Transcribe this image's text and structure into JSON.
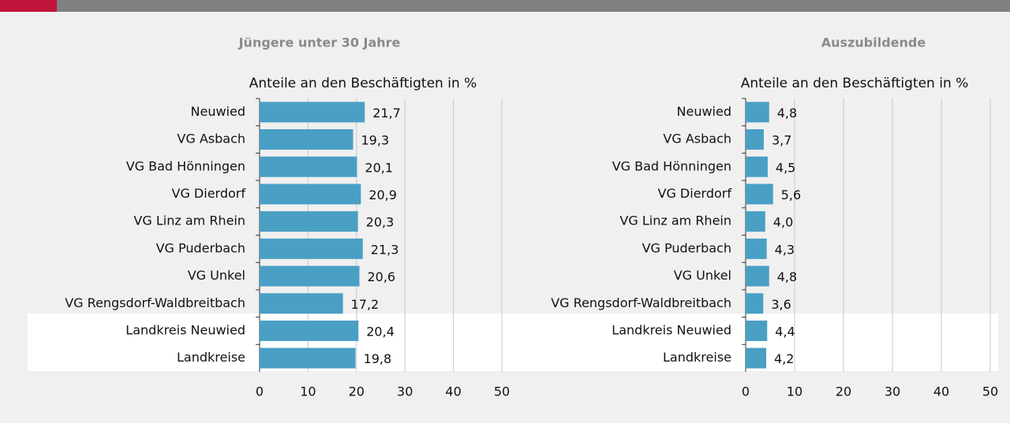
{
  "chart_data": [
    {
      "type": "bar",
      "orientation": "horizontal",
      "title": "Jüngere unter 30 Jahre",
      "subtitle": "Anteile an den Beschäftigten in %",
      "categories": [
        "Neuwied",
        "VG Asbach",
        "VG Bad Hönningen",
        "VG Dierdorf",
        "VG Linz am Rhein",
        "VG Puderbach",
        "VG Unkel",
        "VG Rengsdorf-Waldbreitbach",
        "Landkreis Neuwied",
        "Landkreise"
      ],
      "values": [
        21.7,
        19.3,
        20.1,
        20.9,
        20.3,
        21.3,
        20.6,
        17.2,
        20.4,
        19.8
      ],
      "value_labels": [
        "21,7",
        "19,3",
        "20,1",
        "20,9",
        "20,3",
        "21,3",
        "20,6",
        "17,2",
        "20,4",
        "19,8"
      ],
      "color": "#4a9fc4",
      "xlim": [
        0,
        50
      ],
      "xticks": [
        0,
        10,
        20,
        30,
        40,
        50
      ],
      "grid": true
    },
    {
      "type": "bar",
      "orientation": "horizontal",
      "title": "Auszubildende",
      "subtitle": "Anteile an den Beschäftigten in %",
      "categories": [
        "Neuwied",
        "VG Asbach",
        "VG Bad Hönningen",
        "VG Dierdorf",
        "VG Linz am Rhein",
        "VG Puderbach",
        "VG Unkel",
        "VG Rengsdorf-Waldbreitbach",
        "Landkreis Neuwied",
        "Landkreise"
      ],
      "values": [
        4.8,
        3.7,
        4.5,
        5.6,
        4.0,
        4.3,
        4.8,
        3.6,
        4.4,
        4.2
      ],
      "value_labels": [
        "4,8",
        "3,7",
        "4,5",
        "5,6",
        "4,0",
        "4,3",
        "4,8",
        "3,6",
        "4,4",
        "4,2"
      ],
      "color": "#4a9fc4",
      "xlim": [
        0,
        50
      ],
      "xticks": [
        0,
        10,
        20,
        30,
        40,
        50
      ],
      "grid": true
    }
  ]
}
